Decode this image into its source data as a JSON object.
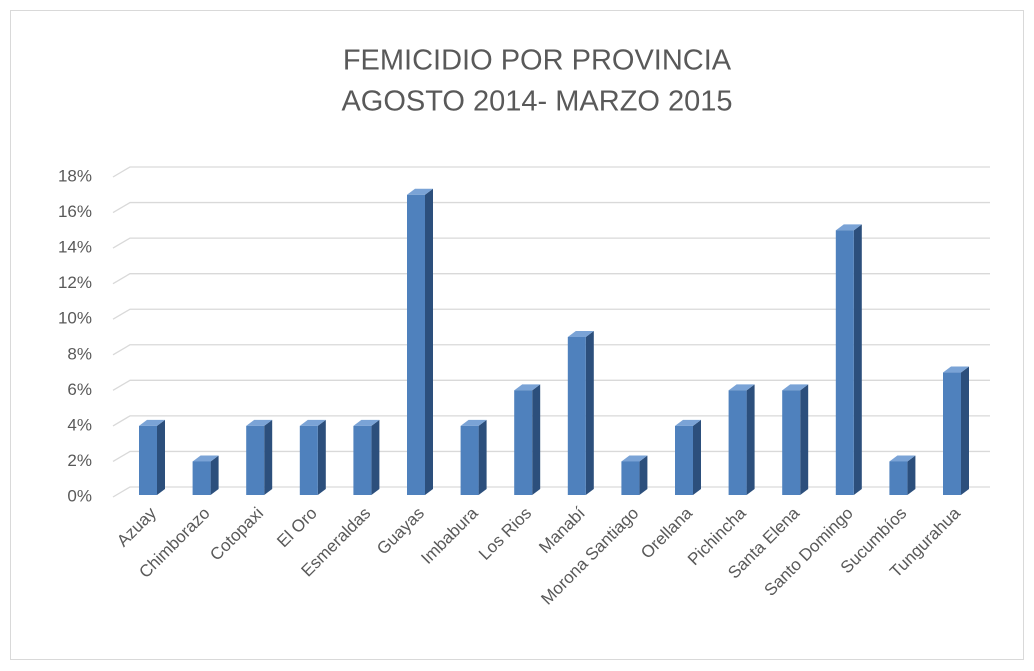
{
  "chart_data": {
    "type": "bar3d",
    "title": "FEMICIDIO POR PROVINCIA",
    "subtitle": "AGOSTO 2014- MARZO 2015",
    "categories": [
      "Azuay",
      "Chimborazo",
      "Cotopaxi",
      "El Oro",
      "Esmeraldas",
      "Guayas",
      "Imbabura",
      "Los Rios",
      "Manabí",
      "Morona Santiago",
      "Orellana",
      "Pichincha",
      "Santa Elena",
      "Santo Domingo",
      "Sucumbíos",
      "Tungurahua"
    ],
    "values": [
      4,
      2,
      4,
      4,
      4,
      17,
      4,
      6,
      9,
      2,
      4,
      6,
      6,
      15,
      2,
      7
    ],
    "color": "#4f81bd",
    "ylim": [
      0,
      18
    ],
    "yticks": [
      {
        "value": 0,
        "label": "0%"
      },
      {
        "value": 2,
        "label": "2%"
      },
      {
        "value": 4,
        "label": "4%"
      },
      {
        "value": 6,
        "label": "6%"
      },
      {
        "value": 8,
        "label": "8%"
      },
      {
        "value": 10,
        "label": "10%"
      },
      {
        "value": 12,
        "label": "12%"
      },
      {
        "value": 14,
        "label": "14%"
      },
      {
        "value": 16,
        "label": "16%"
      },
      {
        "value": 18,
        "label": "18%"
      }
    ],
    "grid": true
  }
}
